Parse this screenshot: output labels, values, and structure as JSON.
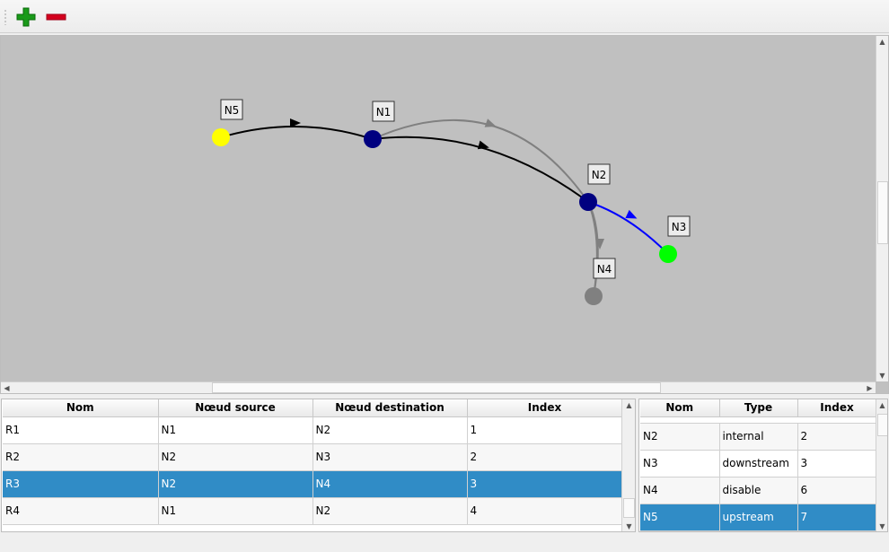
{
  "toolbar": {
    "add_icon": "plus-icon",
    "remove_icon": "minus-icon"
  },
  "colors": {
    "accent": "#308cc6",
    "upstream": "#ffff00",
    "downstream": "#00ff00",
    "internal": "#000080",
    "disable": "#808080",
    "edge": "#000000",
    "edge_disabled": "#808080",
    "edge_selected": "#0000ff",
    "canvas": "#c0c0c0"
  },
  "graph": {
    "nodes": [
      {
        "id": "N5",
        "type": "upstream"
      },
      {
        "id": "N1",
        "type": "internal"
      },
      {
        "id": "N2",
        "type": "internal"
      },
      {
        "id": "N3",
        "type": "downstream"
      },
      {
        "id": "N4",
        "type": "disable"
      }
    ]
  },
  "reaches_table": {
    "headers": [
      "Nom",
      "Nœud source",
      "Nœud destination",
      "Index"
    ],
    "rows": [
      [
        "R1",
        "N1",
        "N2",
        "1"
      ],
      [
        "R2",
        "N2",
        "N3",
        "2"
      ],
      [
        "R3",
        "N2",
        "N4",
        "3"
      ],
      [
        "R4",
        "N1",
        "N2",
        "4"
      ]
    ],
    "selected_row": 2
  },
  "nodes_table": {
    "headers": [
      "Nom",
      "Type",
      "Index"
    ],
    "rows": [
      [
        "N2",
        "internal",
        "2"
      ],
      [
        "N3",
        "downstream",
        "3"
      ],
      [
        "N4",
        "disable",
        "6"
      ],
      [
        "N5",
        "upstream",
        "7"
      ]
    ],
    "selected_row": 3
  }
}
